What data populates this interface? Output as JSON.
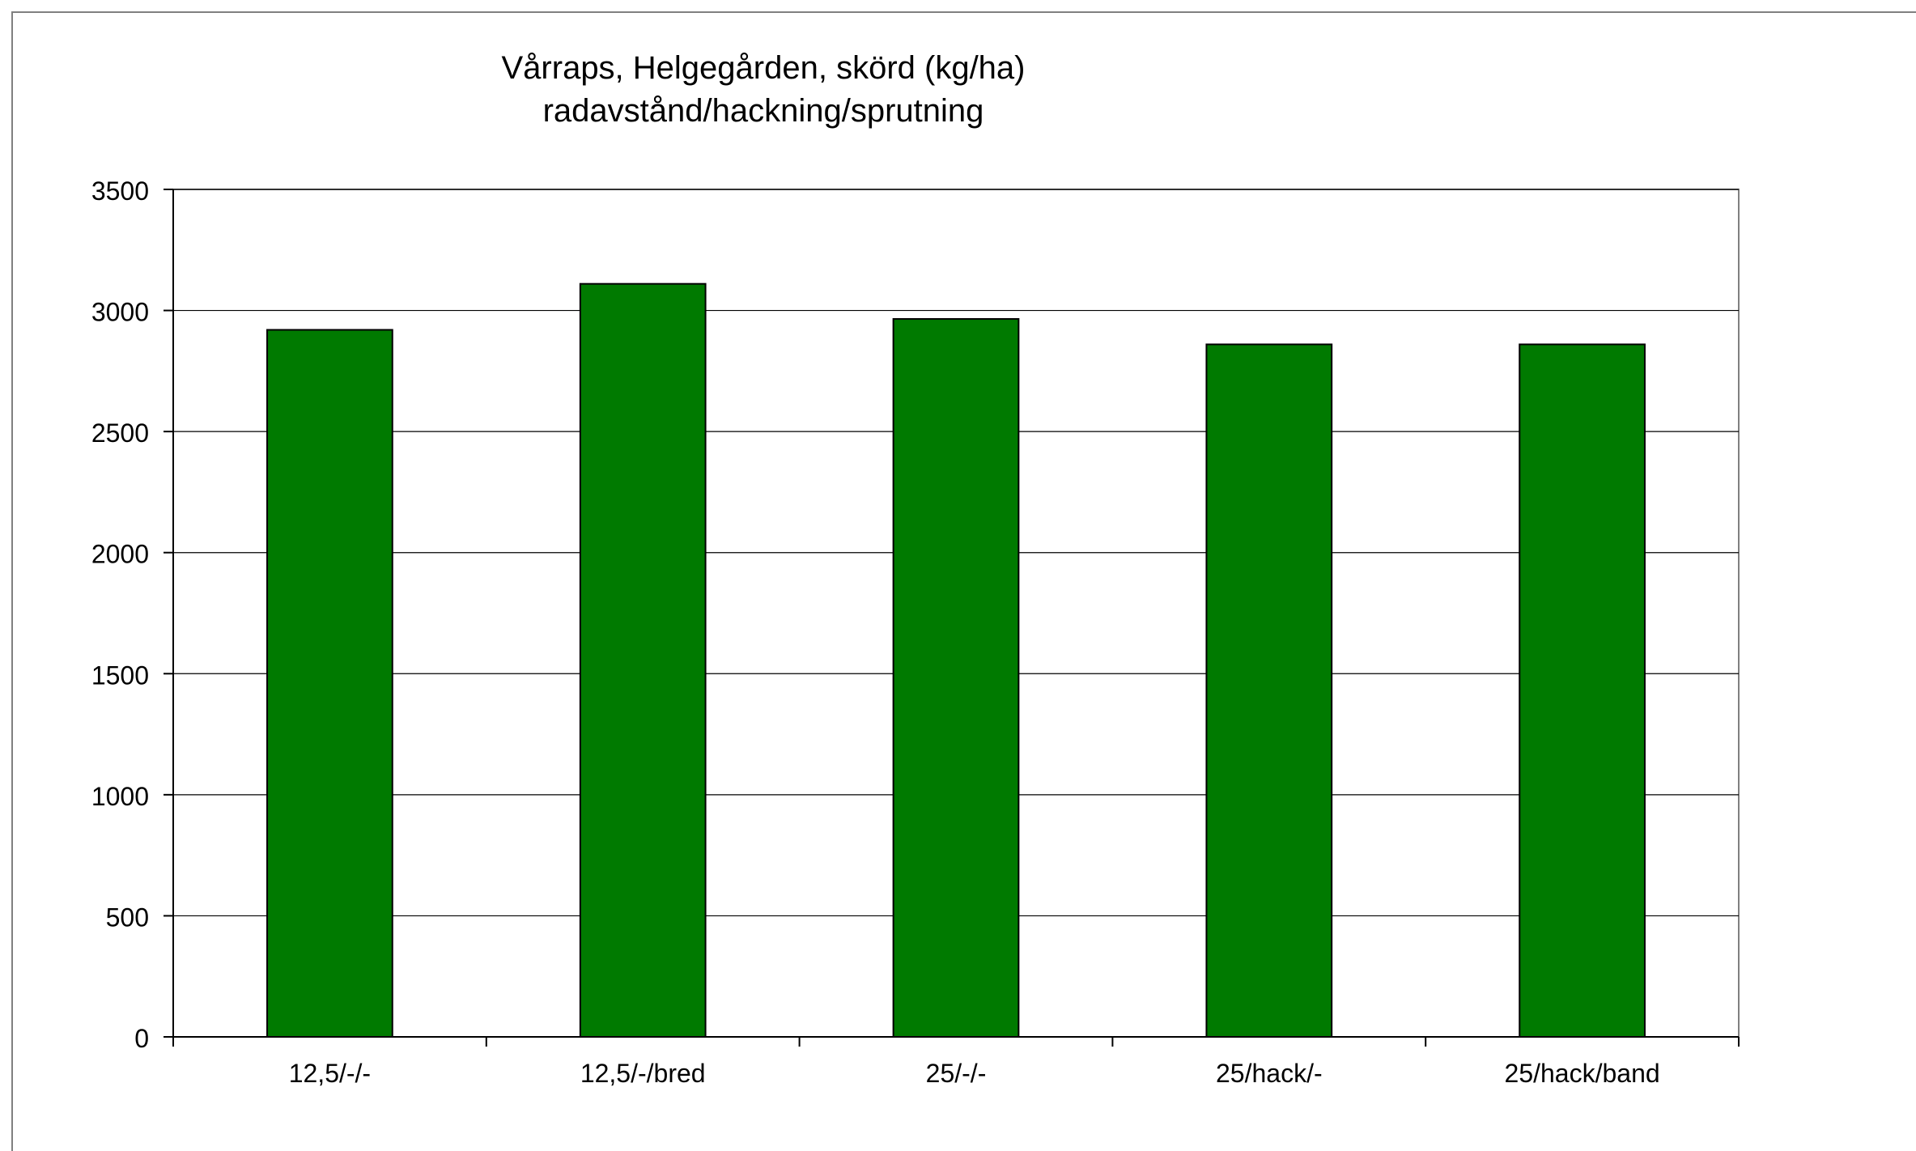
{
  "chart_data": {
    "type": "bar",
    "title": "Vårraps, Helgegården, skörd (kg/ha)",
    "subtitle": "radavstånd/hackning/sprutning",
    "categories": [
      "12,5/-/-",
      "12,5/-/bred",
      "25/-/-",
      "25/hack/-",
      "25/hack/band"
    ],
    "values": [
      2920,
      3110,
      2965,
      2860,
      2860
    ],
    "ylim": [
      0,
      3500
    ],
    "yticks": [
      0,
      500,
      1000,
      1500,
      2000,
      2500,
      3000,
      3500
    ],
    "grid": true,
    "bar_color": "#007a00"
  }
}
